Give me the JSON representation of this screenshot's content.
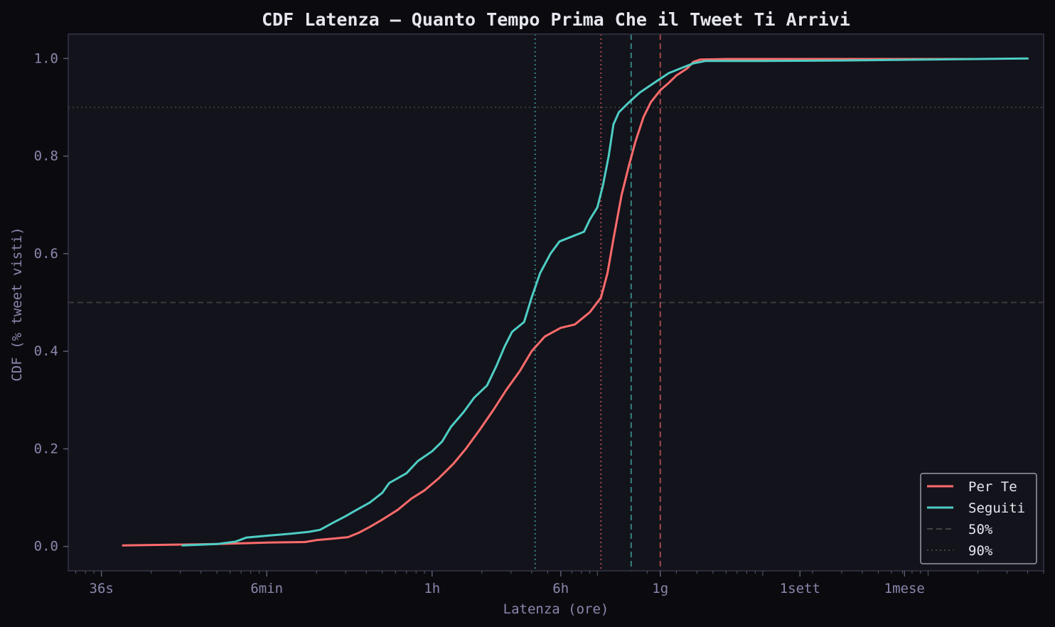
{
  "chart_data": {
    "type": "line",
    "title": "CDF Latenza — Quanto Tempo Prima Che il Tweet Ti Arrivi",
    "xlabel": "Latenza (ore)",
    "ylabel": "CDF (% tweet visti)",
    "x_scale": "log",
    "xlim_hours": [
      0.0063,
      5000
    ],
    "ylim": [
      -0.05,
      1.05
    ],
    "x_ticks": [
      {
        "value": 0.01,
        "label": "36s"
      },
      {
        "value": 0.1,
        "label": "6min"
      },
      {
        "value": 1,
        "label": "1h"
      },
      {
        "value": 6,
        "label": "6h"
      },
      {
        "value": 24,
        "label": "1g"
      },
      {
        "value": 168,
        "label": "1sett"
      },
      {
        "value": 720,
        "label": "1mese"
      }
    ],
    "y_ticks": [
      {
        "value": 0.0,
        "label": "0.0"
      },
      {
        "value": 0.2,
        "label": "0.2"
      },
      {
        "value": 0.4,
        "label": "0.4"
      },
      {
        "value": 0.6,
        "label": "0.6"
      },
      {
        "value": 0.8,
        "label": "0.8"
      },
      {
        "value": 1.0,
        "label": "1.0"
      }
    ],
    "series": [
      {
        "name": "Per Te",
        "color": "#ff6b6b",
        "points": [
          [
            0.0135,
            0.002
          ],
          [
            0.05,
            0.005
          ],
          [
            0.1,
            0.008
          ],
          [
            0.17,
            0.009
          ],
          [
            0.2,
            0.013
          ],
          [
            0.25,
            0.016
          ],
          [
            0.31,
            0.019
          ],
          [
            0.36,
            0.028
          ],
          [
            0.42,
            0.04
          ],
          [
            0.5,
            0.055
          ],
          [
            0.62,
            0.075
          ],
          [
            0.75,
            0.098
          ],
          [
            0.9,
            0.115
          ],
          [
            1.1,
            0.14
          ],
          [
            1.35,
            0.17
          ],
          [
            1.6,
            0.2
          ],
          [
            1.95,
            0.24
          ],
          [
            2.35,
            0.28
          ],
          [
            2.8,
            0.32
          ],
          [
            3.4,
            0.36
          ],
          [
            4.0,
            0.4
          ],
          [
            4.8,
            0.43
          ],
          [
            6.0,
            0.448
          ],
          [
            7.3,
            0.455
          ],
          [
            9.0,
            0.48
          ],
          [
            10.5,
            0.51
          ],
          [
            11.5,
            0.56
          ],
          [
            12.5,
            0.63
          ],
          [
            14.0,
            0.72
          ],
          [
            15.5,
            0.78
          ],
          [
            17.0,
            0.83
          ],
          [
            19.0,
            0.88
          ],
          [
            21.0,
            0.91
          ],
          [
            24.0,
            0.935
          ],
          [
            27.0,
            0.95
          ],
          [
            30.0,
            0.965
          ],
          [
            35.0,
            0.98
          ],
          [
            38.0,
            0.993
          ],
          [
            42.0,
            0.998
          ],
          [
            60.0,
            0.999
          ],
          [
            200.0,
            0.999
          ],
          [
            1000.0,
            0.999
          ],
          [
            2050.0,
            0.999
          ]
        ]
      },
      {
        "name": "Seguiti",
        "color": "#4ecdc4",
        "points": [
          [
            0.031,
            0.002
          ],
          [
            0.05,
            0.005
          ],
          [
            0.065,
            0.01
          ],
          [
            0.075,
            0.018
          ],
          [
            0.1,
            0.022
          ],
          [
            0.14,
            0.026
          ],
          [
            0.18,
            0.03
          ],
          [
            0.21,
            0.034
          ],
          [
            0.25,
            0.048
          ],
          [
            0.3,
            0.062
          ],
          [
            0.35,
            0.075
          ],
          [
            0.42,
            0.09
          ],
          [
            0.5,
            0.11
          ],
          [
            0.55,
            0.13
          ],
          [
            0.7,
            0.15
          ],
          [
            0.82,
            0.175
          ],
          [
            1.0,
            0.195
          ],
          [
            1.15,
            0.215
          ],
          [
            1.3,
            0.245
          ],
          [
            1.55,
            0.275
          ],
          [
            1.8,
            0.305
          ],
          [
            2.15,
            0.33
          ],
          [
            2.45,
            0.37
          ],
          [
            2.75,
            0.41
          ],
          [
            3.05,
            0.44
          ],
          [
            3.6,
            0.46
          ],
          [
            4.0,
            0.51
          ],
          [
            4.5,
            0.56
          ],
          [
            5.2,
            0.6
          ],
          [
            5.9,
            0.625
          ],
          [
            7.0,
            0.635
          ],
          [
            8.3,
            0.645
          ],
          [
            9.0,
            0.67
          ],
          [
            10.0,
            0.695
          ],
          [
            10.8,
            0.74
          ],
          [
            11.7,
            0.8
          ],
          [
            12.5,
            0.865
          ],
          [
            13.5,
            0.89
          ],
          [
            15.5,
            0.91
          ],
          [
            18.0,
            0.93
          ],
          [
            22.0,
            0.95
          ],
          [
            27.0,
            0.97
          ],
          [
            32.0,
            0.98
          ],
          [
            38.0,
            0.99
          ],
          [
            45.0,
            0.995
          ],
          [
            100.0,
            0.995
          ],
          [
            300.0,
            0.996
          ],
          [
            1000.0,
            0.998
          ],
          [
            4000.0,
            1.0
          ]
        ]
      }
    ],
    "reference_lines": {
      "horizontal": [
        {
          "y": 0.5,
          "style": "dashed"
        },
        {
          "y": 0.9,
          "style": "dotted"
        }
      ],
      "vertical": [
        {
          "x": 4.2,
          "style": "dotted",
          "color": "#4ecdc4"
        },
        {
          "x": 10.5,
          "style": "dotted",
          "color": "#ff6b6b"
        },
        {
          "x": 16.0,
          "style": "dashed",
          "color": "#4ecdc4"
        },
        {
          "x": 24.0,
          "style": "dashed",
          "color": "#ff6b6b"
        }
      ]
    },
    "legend": {
      "position": "lower-right",
      "entries": [
        {
          "label": "Per Te",
          "style": "solid",
          "color": "#ff6b6b"
        },
        {
          "label": "Seguiti",
          "style": "solid",
          "color": "#4ecdc4"
        },
        {
          "label": "50%",
          "style": "dashed",
          "color": "#444444"
        },
        {
          "label": "90%",
          "style": "dotted",
          "color": "#444444"
        }
      ]
    },
    "grid": false,
    "colors": {
      "page_background": "#0b0b0f",
      "plot_background": "#13131b",
      "axes_border": "#34344a",
      "text": "#8a86ad"
    }
  }
}
